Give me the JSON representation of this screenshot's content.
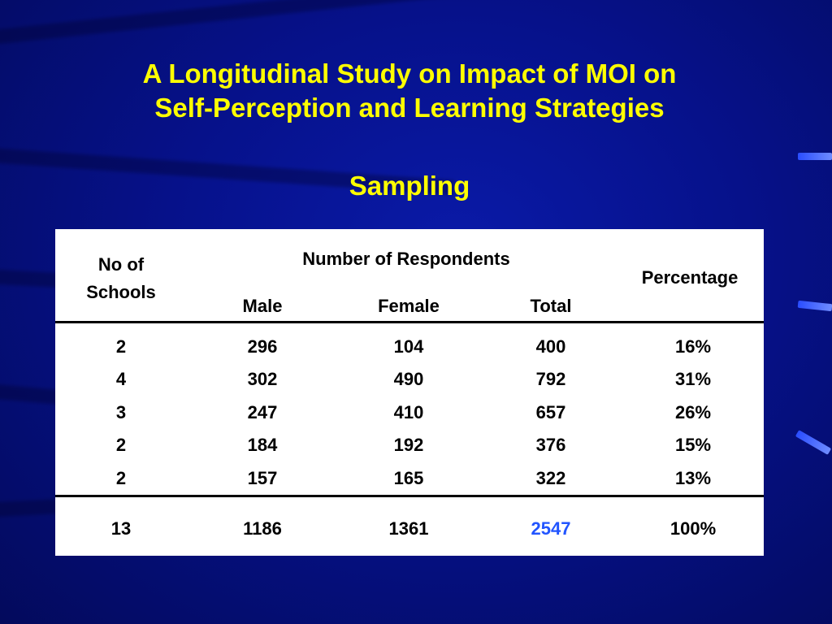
{
  "slide": {
    "title_line1": "A Longitudinal Study on Impact of MOI on",
    "title_line2": "Self-Perception and Learning Strategies",
    "subtitle": "Sampling"
  },
  "table": {
    "header": {
      "schools_line1": "No of",
      "schools_line2": "Schools",
      "group": "Number of Respondents",
      "male": "Male",
      "female": "Female",
      "total": "Total",
      "percentage": "Percentage"
    },
    "rows": [
      {
        "schools": "2",
        "male": "296",
        "female": "104",
        "total": "400",
        "percentage": "16%"
      },
      {
        "schools": "4",
        "male": "302",
        "female": "490",
        "total": "792",
        "percentage": "31%"
      },
      {
        "schools": "3",
        "male": "247",
        "female": "410",
        "total": "657",
        "percentage": "26%"
      },
      {
        "schools": "2",
        "male": "184",
        "female": "192",
        "total": "376",
        "percentage": "15%"
      },
      {
        "schools": "2",
        "male": "157",
        "female": "165",
        "total": "322",
        "percentage": "13%"
      }
    ],
    "totals": {
      "schools": "13",
      "male": "1186",
      "female": "1361",
      "total": "2547",
      "percentage": "100%"
    }
  },
  "colors": {
    "title": "#ffff00",
    "background": "#06118a",
    "total_highlight": "#2255ff"
  }
}
